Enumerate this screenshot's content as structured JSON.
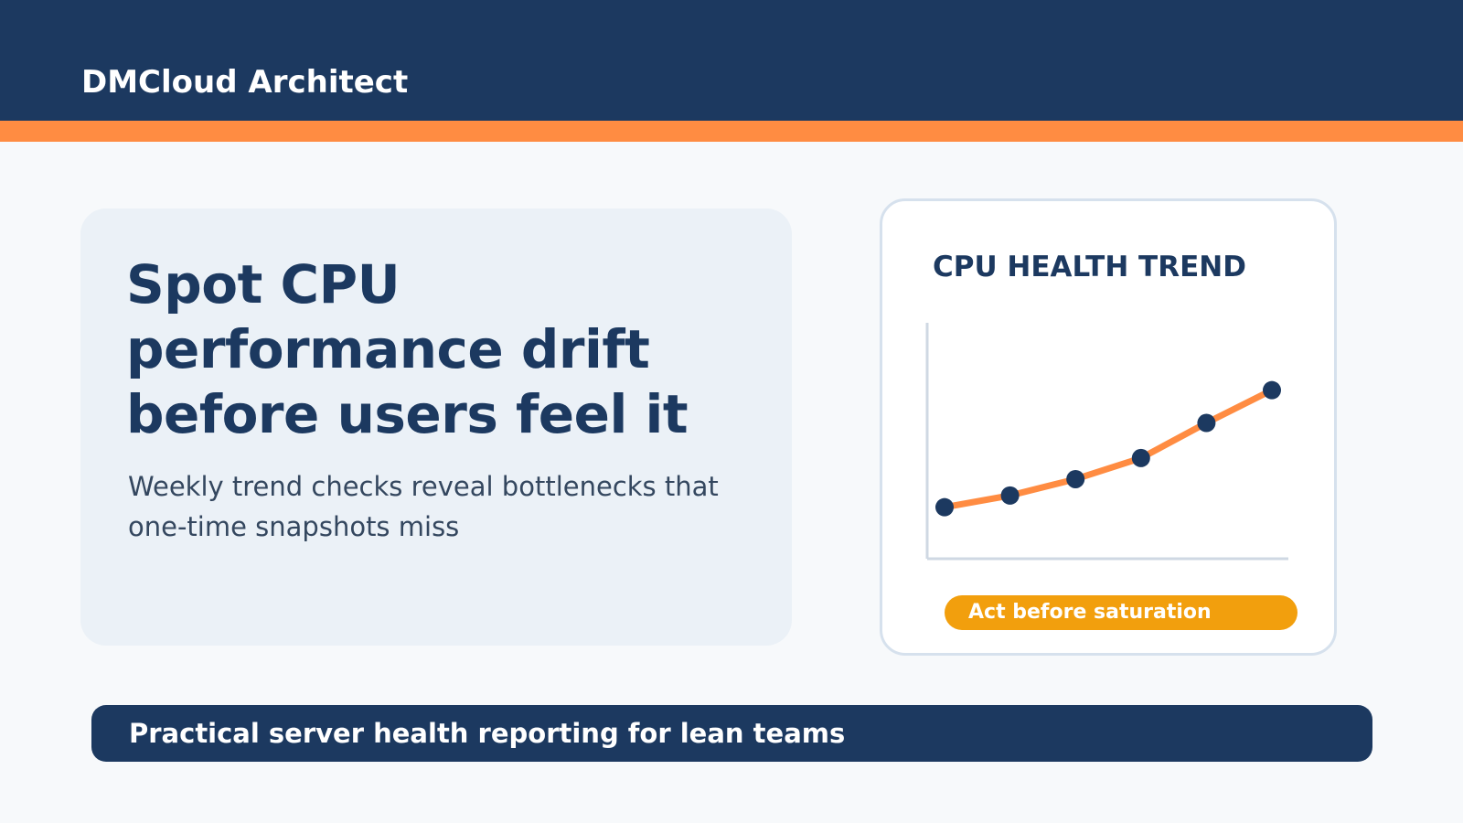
{
  "header": {
    "brand": "DMCloud Architect"
  },
  "hero": {
    "headline": "Spot CPU performance drift before users feel it",
    "subline": "Weekly trend checks reveal bottlenecks that one-time snapshots miss"
  },
  "chart_card": {
    "callout": "Act before saturation"
  },
  "footer": {
    "tagline": "Practical server health reporting for lean teams"
  },
  "colors": {
    "navy": "#1c3960",
    "orange": "#ff8c42",
    "amber": "#f29f0d",
    "hero_bg": "#ebf1f7",
    "page_bg": "#f7f9fb"
  },
  "chart_data": {
    "type": "line",
    "title": "CPU HEALTH TREND",
    "xlabel": "",
    "ylabel": "",
    "x": [
      1,
      2,
      3,
      4,
      5,
      6
    ],
    "series": [
      {
        "values": [
          22,
          27,
          34,
          43,
          58,
          72
        ]
      }
    ],
    "ylim": [
      0,
      100
    ],
    "grid": false,
    "legend": "none",
    "line_color": "#ff8c42",
    "marker_color": "#1c3960"
  }
}
